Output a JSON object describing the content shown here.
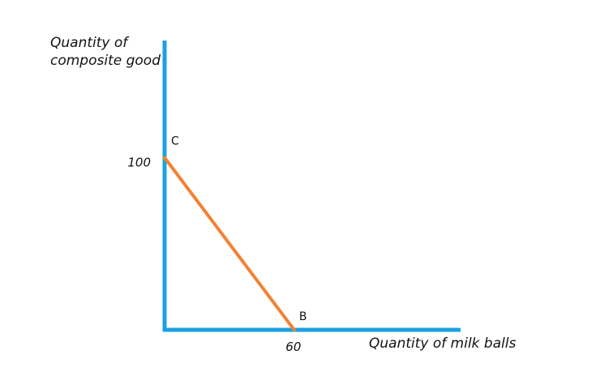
{
  "chart_data": {
    "type": "line",
    "title": "",
    "xlabel": "Quantity of milk balls",
    "ylabel_lines": [
      "Quantity of",
      "composite good"
    ],
    "x_ticks": [
      {
        "value": 60,
        "label": "60"
      }
    ],
    "y_ticks": [
      {
        "value": 100,
        "label": "100"
      }
    ],
    "xlim": [
      0,
      137
    ],
    "ylim": [
      0,
      168
    ],
    "grid": false,
    "legend": "none",
    "series": [
      {
        "points": [
          {
            "x": 0,
            "y": 100,
            "label": "C"
          },
          {
            "x": 60,
            "y": 0,
            "label": "B"
          }
        ],
        "color": "#f28232"
      }
    ],
    "axis_color": "#1ba1e2"
  }
}
